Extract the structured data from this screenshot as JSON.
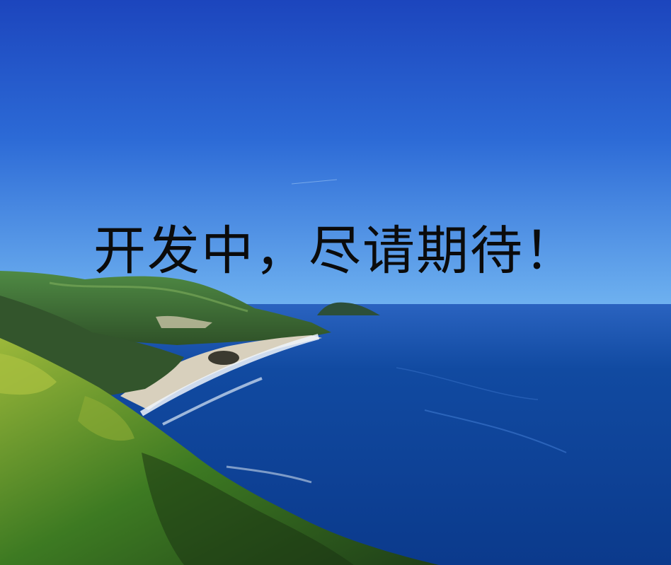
{
  "banner": {
    "headline": "开发中，尽请期待！"
  },
  "scene": {
    "sky_top_color": "#1d4bc4",
    "sky_horizon_color": "#5aa6ee",
    "ocean_color": "#0e3f92",
    "ocean_far_color": "#1e5fc2",
    "hill_color": "#3c6a36",
    "vegetation_color": "#3f7a22",
    "sand_color": "#d8d0bd"
  }
}
